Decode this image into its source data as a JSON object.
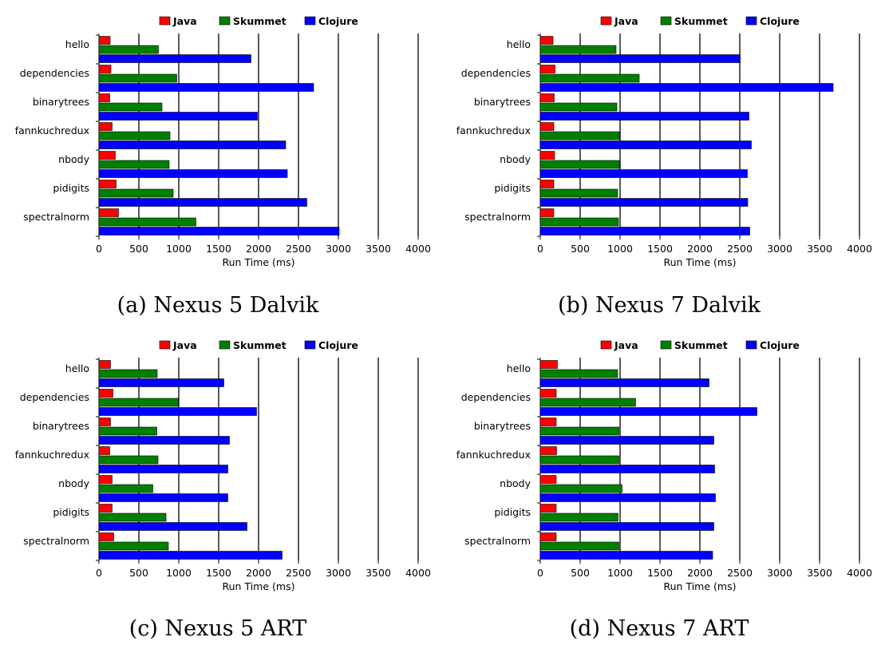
{
  "legend_colors": {
    "Java": "#ff0000",
    "Skummet": "#008000",
    "Clojure": "#0000ff"
  },
  "chart_data": [
    {
      "type": "bar",
      "orientation": "horizontal",
      "caption": "(a) Nexus 5 Dalvik",
      "categories": [
        "hello",
        "dependencies",
        "binarytrees",
        "fannkuchredux",
        "nbody",
        "pidigits",
        "spectralnorm"
      ],
      "series": [
        {
          "name": "Java",
          "color": "#ff0000",
          "values": [
            140,
            150,
            135,
            165,
            205,
            215,
            245
          ]
        },
        {
          "name": "Skummet",
          "color": "#008000",
          "values": [
            745,
            975,
            790,
            890,
            880,
            930,
            1215
          ]
        },
        {
          "name": "Clojure",
          "color": "#0000ff",
          "values": [
            1905,
            2690,
            1985,
            2340,
            2360,
            2605,
            3010
          ]
        }
      ],
      "xlabel": "Run Time (ms)",
      "xlim": [
        0,
        4000
      ],
      "xticks": [
        "0",
        "500",
        "1000",
        "1500",
        "2000",
        "2500",
        "3000",
        "3500",
        "4000"
      ],
      "grid": true,
      "legend_position": "top"
    },
    {
      "type": "bar",
      "orientation": "horizontal",
      "caption": "(b) Nexus 7 Dalvik",
      "categories": [
        "hello",
        "dependencies",
        "binarytrees",
        "fannkuchredux",
        "nbody",
        "pidigits",
        "spectralnorm"
      ],
      "series": [
        {
          "name": "Java",
          "color": "#ff0000",
          "values": [
            160,
            185,
            175,
            170,
            180,
            170,
            170
          ]
        },
        {
          "name": "Skummet",
          "color": "#008000",
          "values": [
            950,
            1240,
            960,
            990,
            990,
            970,
            980
          ]
        },
        {
          "name": "Clojure",
          "color": "#0000ff",
          "values": [
            2505,
            3670,
            2615,
            2645,
            2595,
            2600,
            2625
          ]
        }
      ],
      "xlabel": "Run Time (ms)",
      "xlim": [
        0,
        4000
      ],
      "xticks": [
        "0",
        "500",
        "1000",
        "1500",
        "2000",
        "2500",
        "3000",
        "3500",
        "4000"
      ],
      "grid": true,
      "legend_position": "top"
    },
    {
      "type": "bar",
      "orientation": "horizontal",
      "caption": "(c) Nexus 5 ART",
      "categories": [
        "hello",
        "dependencies",
        "binarytrees",
        "fannkuchredux",
        "nbody",
        "pidigits",
        "spectralnorm"
      ],
      "series": [
        {
          "name": "Java",
          "color": "#ff0000",
          "values": [
            145,
            175,
            145,
            135,
            165,
            165,
            185
          ]
        },
        {
          "name": "Skummet",
          "color": "#008000",
          "values": [
            730,
            995,
            725,
            740,
            675,
            840,
            870
          ]
        },
        {
          "name": "Clojure",
          "color": "#0000ff",
          "values": [
            1565,
            1975,
            1635,
            1615,
            1615,
            1855,
            2295
          ]
        }
      ],
      "xlabel": "Run Time (ms)",
      "xlim": [
        0,
        4000
      ],
      "xticks": [
        "0",
        "500",
        "1000",
        "1500",
        "2000",
        "2500",
        "3000",
        "3500",
        "4000"
      ],
      "grid": true,
      "legend_position": "top"
    },
    {
      "type": "bar",
      "orientation": "horizontal",
      "caption": "(d) Nexus 7 ART",
      "categories": [
        "hello",
        "dependencies",
        "binarytrees",
        "fannkuchredux",
        "nbody",
        "pidigits",
        "spectralnorm"
      ],
      "series": [
        {
          "name": "Java",
          "color": "#ff0000",
          "values": [
            215,
            200,
            200,
            205,
            200,
            200,
            200
          ]
        },
        {
          "name": "Skummet",
          "color": "#008000",
          "values": [
            970,
            1195,
            985,
            985,
            1025,
            975,
            985
          ]
        },
        {
          "name": "Clojure",
          "color": "#0000ff",
          "values": [
            2115,
            2715,
            2175,
            2185,
            2195,
            2175,
            2160
          ]
        }
      ],
      "xlabel": "Run Time (ms)",
      "xlim": [
        0,
        4000
      ],
      "xticks": [
        "0",
        "500",
        "1000",
        "1500",
        "2000",
        "2500",
        "3000",
        "3500",
        "4000"
      ],
      "grid": true,
      "legend_position": "top"
    }
  ]
}
